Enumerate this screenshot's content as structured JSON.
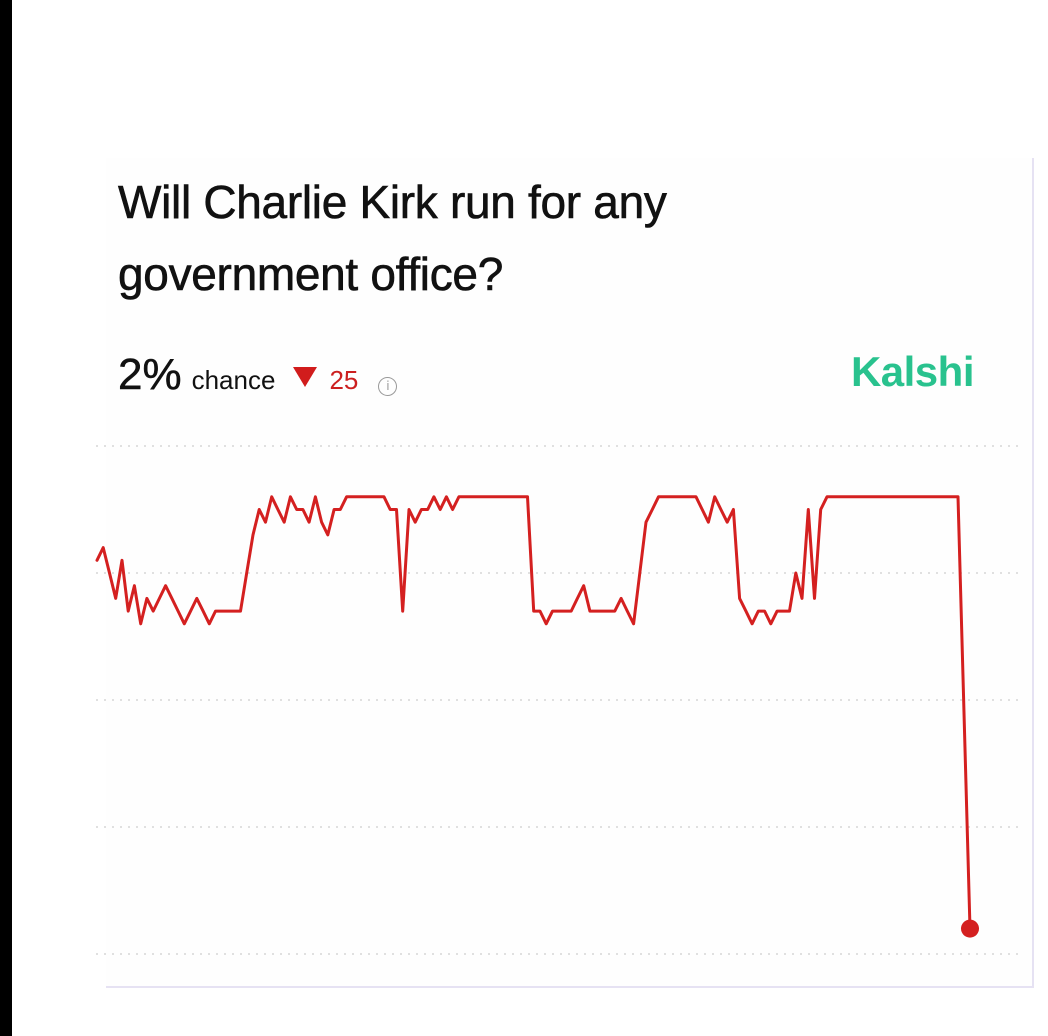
{
  "header": {
    "title": "Will Charlie Kirk run for any government office?",
    "probability": "2%",
    "probability_label": "chance",
    "change": "25",
    "change_direction": "down",
    "info_icon": "info-icon",
    "brand": "Kalshi"
  },
  "colors": {
    "line": "#d42020",
    "brand": "#29c28e",
    "change": "#cc1f1f",
    "grid": "#d6d6d6",
    "text": "#111111"
  },
  "chart_data": {
    "type": "line",
    "title": "",
    "xlabel": "",
    "ylabel": "",
    "grid": true,
    "legend": "none",
    "ylim": [
      0,
      40
    ],
    "gridlines": [
      0,
      10,
      20,
      30,
      40
    ],
    "series": [
      {
        "values": [
          31,
          32,
          30,
          28,
          31,
          27,
          29,
          26,
          28,
          27,
          28,
          29,
          28,
          27,
          26,
          27,
          28,
          27,
          26,
          27,
          27,
          27,
          27,
          27,
          30,
          33,
          35,
          34,
          36,
          35,
          34,
          36,
          35,
          35,
          34,
          36,
          34,
          33,
          35,
          35,
          36,
          36,
          36,
          36,
          36,
          36,
          36,
          35,
          35,
          27,
          35,
          34,
          35,
          35,
          36,
          35,
          36,
          35,
          36,
          36,
          36,
          36,
          36,
          36,
          36,
          36,
          36,
          36,
          36,
          36,
          27,
          27,
          26,
          27,
          27,
          27,
          27,
          28,
          29,
          27,
          27,
          27,
          27,
          27,
          28,
          27,
          26,
          30,
          34,
          35,
          36,
          36,
          36,
          36,
          36,
          36,
          36,
          35,
          34,
          36,
          35,
          34,
          35,
          28,
          27,
          26,
          27,
          27,
          26,
          27,
          27,
          27,
          30,
          28,
          35,
          28,
          35,
          36,
          36,
          36,
          36,
          36,
          36,
          36,
          36,
          36,
          36,
          36,
          36,
          36,
          36,
          36,
          36,
          36,
          36,
          36,
          36,
          36,
          36,
          2
        ]
      }
    ]
  }
}
